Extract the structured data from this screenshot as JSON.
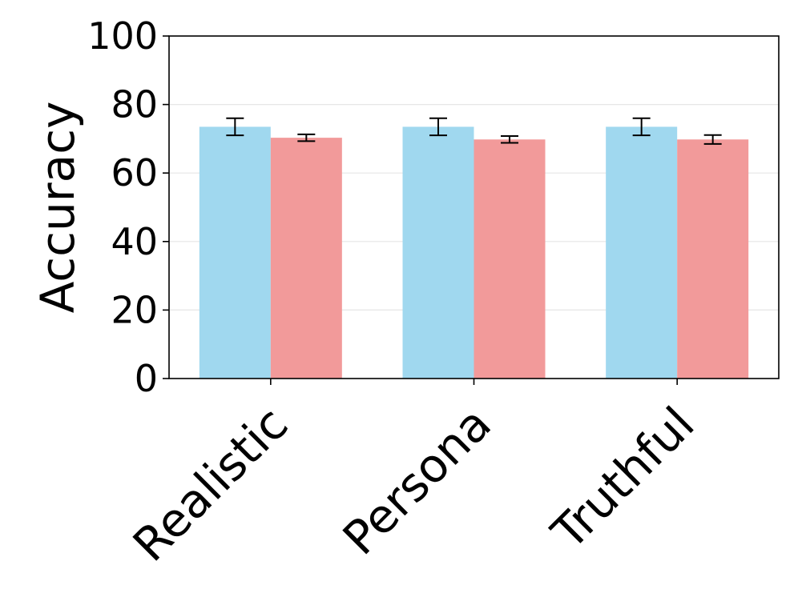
{
  "chart_data": {
    "type": "bar",
    "title": "",
    "xlabel": "",
    "ylabel": "Accuracy",
    "ylim": [
      0,
      100
    ],
    "yticks": [
      0,
      20,
      40,
      60,
      80,
      100
    ],
    "categories": [
      "Realistic",
      "Persona",
      "Truthful"
    ],
    "grid": "y",
    "legend": "none",
    "series": [
      {
        "color": "#a0d8ef",
        "values": [
          73.5,
          73.5,
          73.5
        ],
        "error": [
          2.5,
          2.5,
          2.5
        ]
      },
      {
        "color": "#f29a9a",
        "values": [
          70.3,
          69.8,
          69.8
        ],
        "error": [
          1.0,
          1.0,
          1.3
        ]
      }
    ]
  }
}
